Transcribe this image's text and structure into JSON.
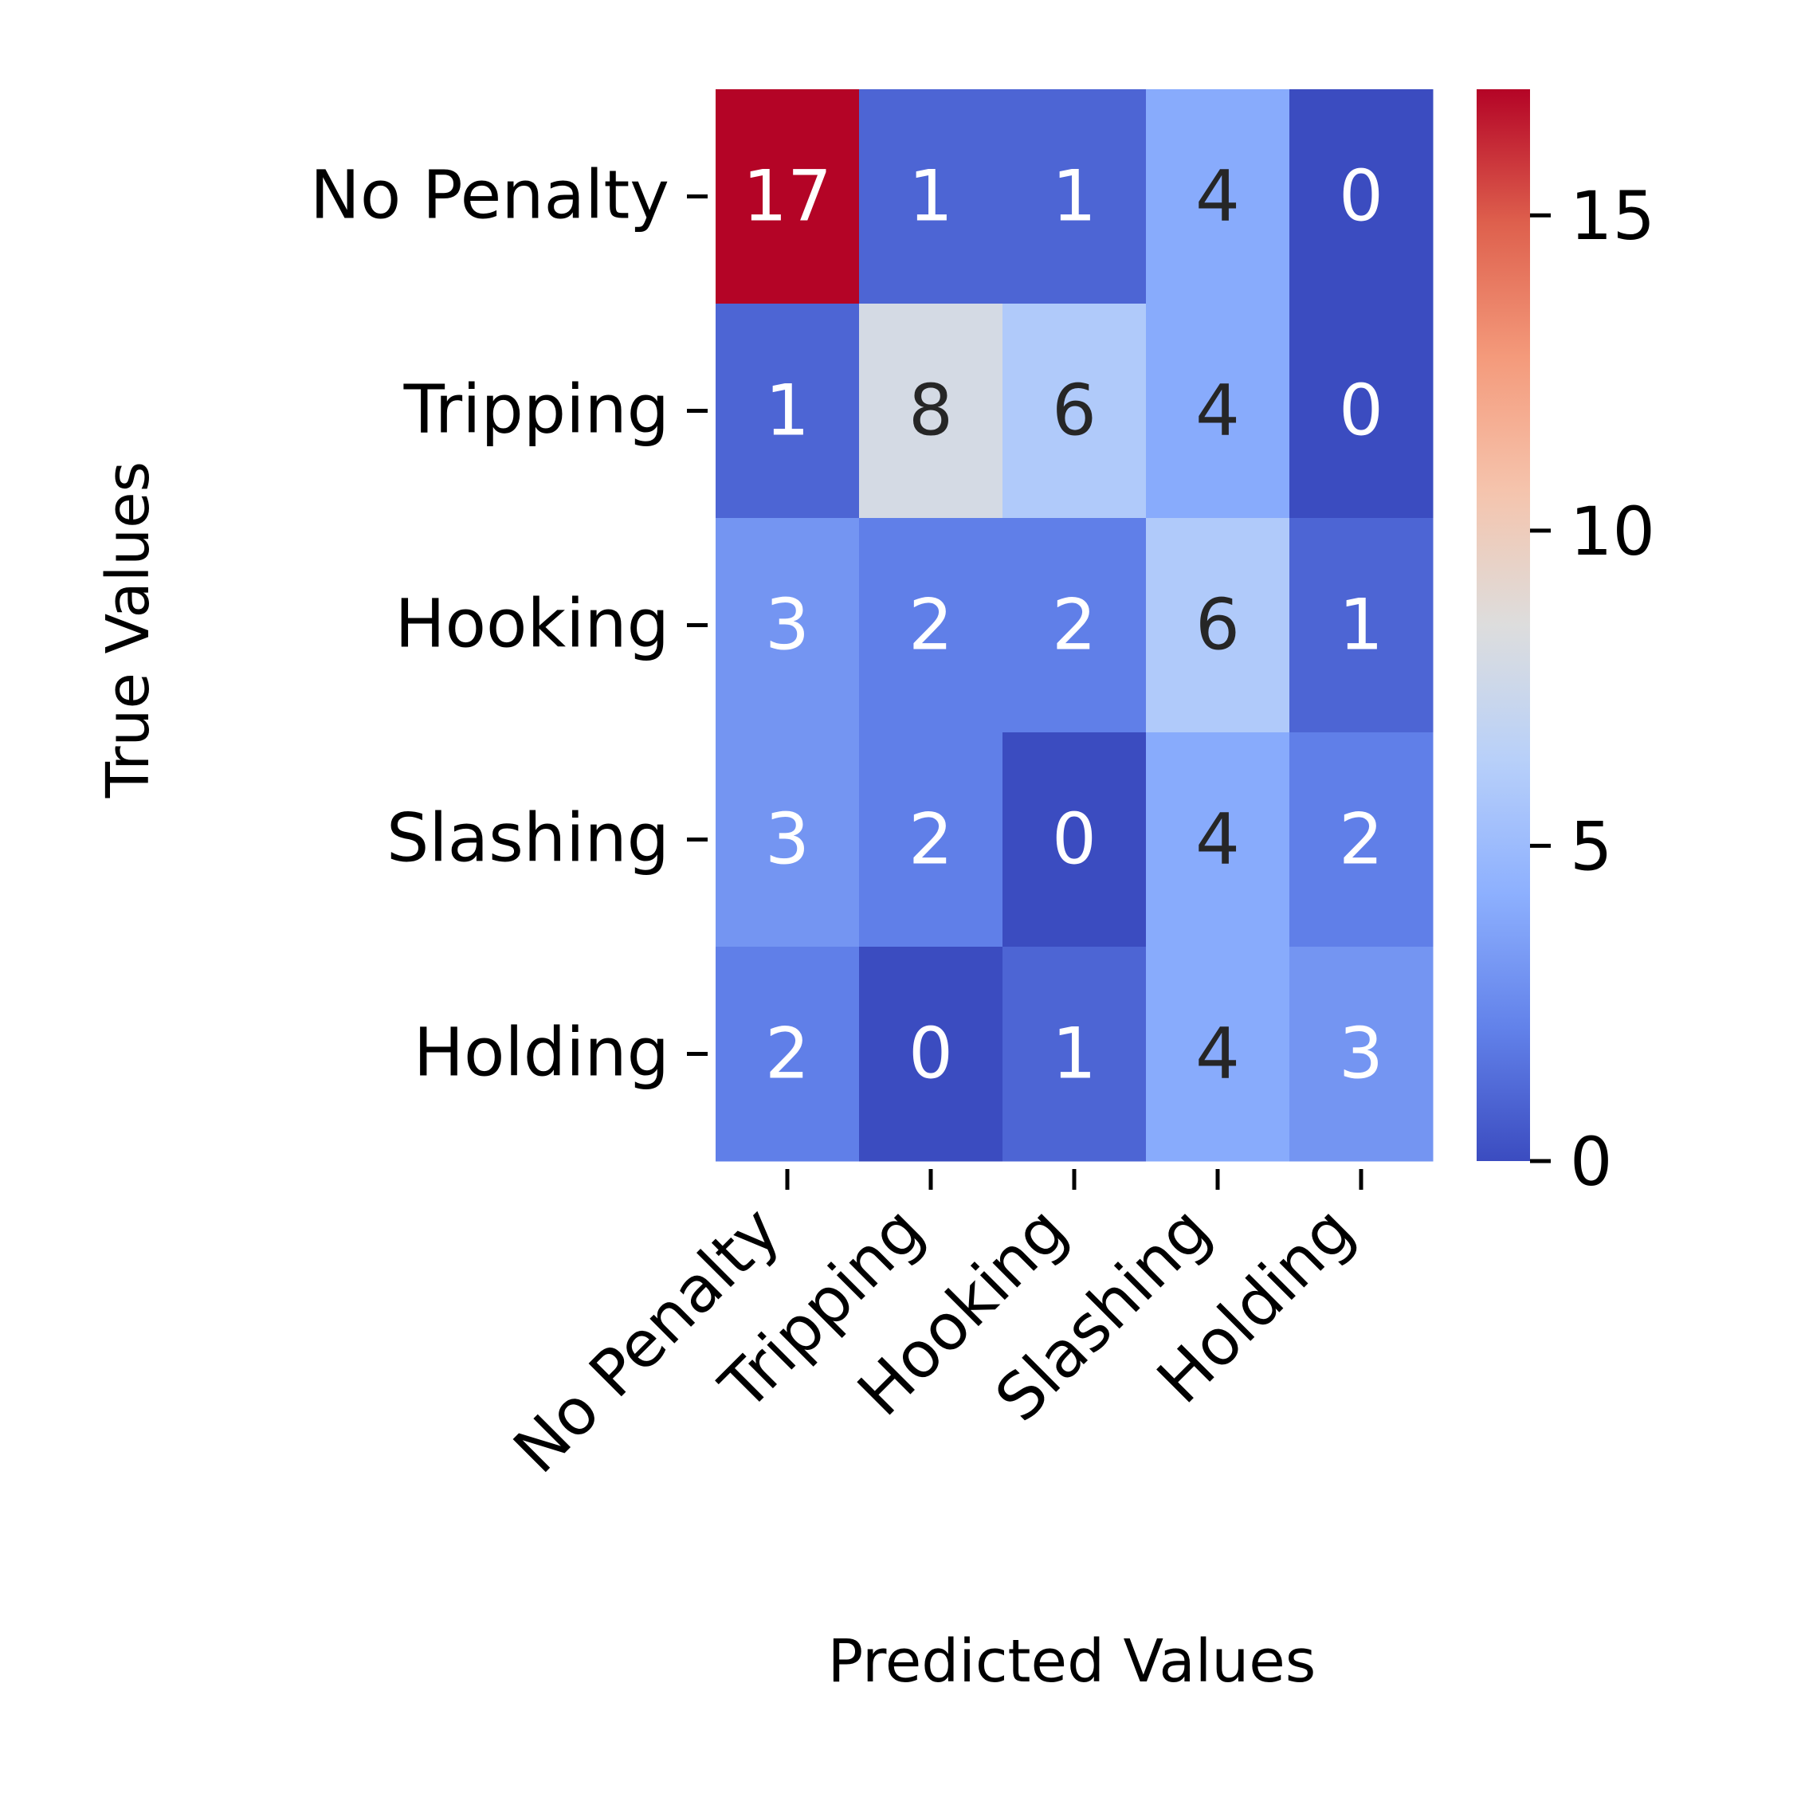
{
  "chart_data": {
    "type": "heatmap",
    "title": "",
    "xlabel": "Predicted Values",
    "ylabel": "True Values",
    "x_categories": [
      "No Penalty",
      "Tripping",
      "Hooking",
      "Slashing",
      "Holding"
    ],
    "y_categories": [
      "No Penalty",
      "Tripping",
      "Hooking",
      "Slashing",
      "Holding"
    ],
    "values": [
      [
        17,
        1,
        1,
        4,
        0
      ],
      [
        1,
        8,
        6,
        4,
        0
      ],
      [
        3,
        2,
        2,
        6,
        1
      ],
      [
        3,
        2,
        0,
        4,
        2
      ],
      [
        2,
        0,
        1,
        4,
        3
      ]
    ],
    "colorbar": {
      "min": 0,
      "max": 17,
      "ticks": [
        0,
        5,
        10,
        15
      ],
      "colormap": "coolwarm"
    },
    "annotations": true,
    "grid": false
  }
}
